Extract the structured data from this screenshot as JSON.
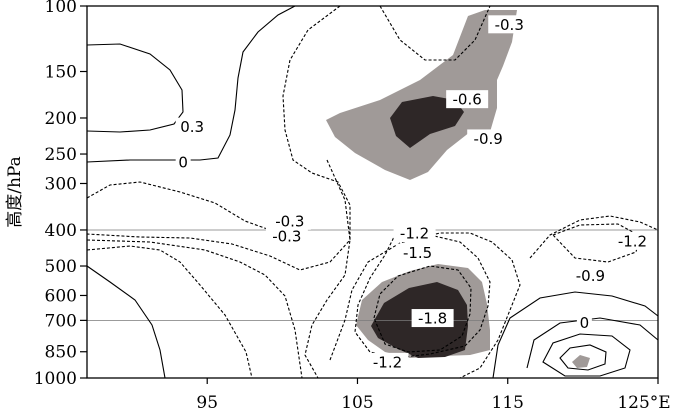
{
  "chart_data": {
    "type": "contour",
    "ylabel": "高度/hPa",
    "x_axis": {
      "range": [
        87,
        125
      ],
      "ticks": [
        95,
        105,
        115,
        125
      ],
      "tick_labels": [
        "95",
        "105",
        "115",
        "125°E"
      ]
    },
    "y_axis": {
      "scale": "log",
      "range": [
        100,
        1000
      ],
      "ticks": [
        100,
        150,
        200,
        250,
        300,
        400,
        500,
        600,
        700,
        850,
        1000
      ],
      "tick_labels": [
        "100",
        "150",
        "200",
        "250",
        "300",
        "400",
        "500",
        "600",
        "700",
        "850",
        "1000"
      ]
    },
    "reference_lines_hPa": [
      400,
      700
    ],
    "shading": {
      "light_color": "#a09a98",
      "dark_color": "#2e2727"
    },
    "contour_labels": [
      {
        "text": "-0.3",
        "lon": 115.1,
        "p": 112
      },
      {
        "text": "-0.6",
        "lon": 112.3,
        "p": 178
      },
      {
        "text": "-0.9",
        "lon": 113.7,
        "p": 227
      },
      {
        "text": "0.3",
        "lon": 94.0,
        "p": 211
      },
      {
        "text": "0",
        "lon": 93.4,
        "p": 263
      },
      {
        "text": "-0.3",
        "lon": 100.5,
        "p": 378
      },
      {
        "text": "-0.3",
        "lon": 100.3,
        "p": 415
      },
      {
        "text": "-1.2",
        "lon": 108.8,
        "p": 408
      },
      {
        "text": "-1.5",
        "lon": 109.0,
        "p": 460
      },
      {
        "text": "-1.2",
        "lon": 123.3,
        "p": 428
      },
      {
        "text": "-0.9",
        "lon": 120.5,
        "p": 530
      },
      {
        "text": "-1.8",
        "lon": 110.0,
        "p": 690
      },
      {
        "text": "-1.2",
        "lon": 107.0,
        "p": 905
      },
      {
        "text": "0",
        "lon": 120.1,
        "p": 710
      }
    ]
  }
}
